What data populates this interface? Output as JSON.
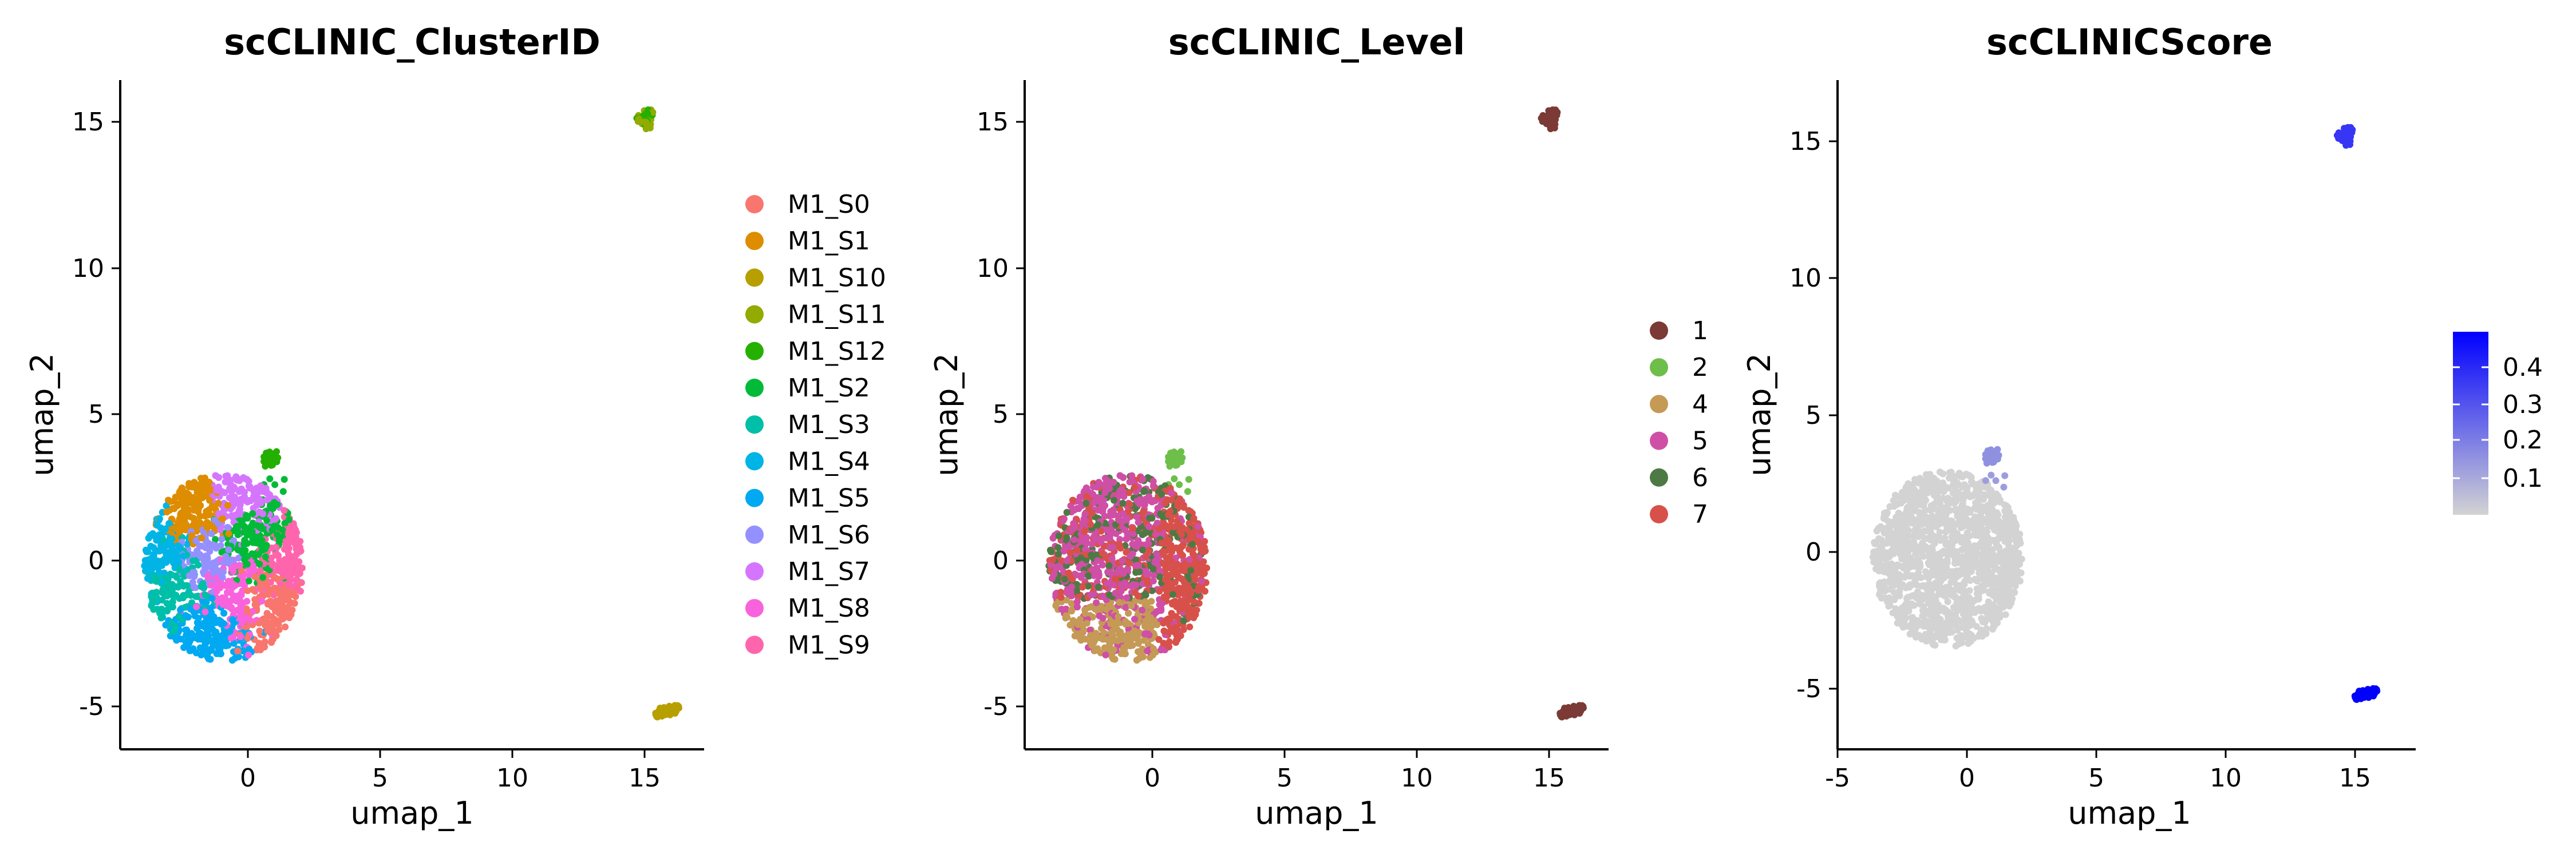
{
  "chart_data": [
    {
      "type": "scatter",
      "title": "scCLINIC_ClusterID",
      "xlabel": "umap_1",
      "ylabel": "umap_2",
      "xlim": [
        -4.8,
        17.2
      ],
      "ylim": [
        -6.5,
        16.3
      ],
      "xticks": [
        "0",
        "5",
        "10",
        "15"
      ],
      "yticks": [
        "-5",
        "0",
        "5",
        "10",
        "15"
      ],
      "legend": {
        "position": "right",
        "title": ""
      },
      "series": [
        {
          "name": "M1_S0",
          "color": "#F8766D"
        },
        {
          "name": "M1_S1",
          "color": "#DE8C00"
        },
        {
          "name": "M1_S10",
          "color": "#B79F00"
        },
        {
          "name": "M1_S11",
          "color": "#93AA00"
        },
        {
          "name": "M1_S12",
          "color": "#25B000"
        },
        {
          "name": "M1_S2",
          "color": "#00BA38"
        },
        {
          "name": "M1_S3",
          "color": "#00BFA8"
        },
        {
          "name": "M1_S4",
          "color": "#00B4E5"
        },
        {
          "name": "M1_S5",
          "color": "#00A9F2"
        },
        {
          "name": "M1_S6",
          "color": "#9590FF"
        },
        {
          "name": "M1_S7",
          "color": "#D575FE"
        },
        {
          "name": "M1_S8",
          "color": "#F962DD"
        },
        {
          "name": "M1_S9",
          "color": "#FF65AC"
        }
      ],
      "clusters": [
        {
          "label": "main",
          "center": [
            -0.9,
            -0.3
          ],
          "radius": [
            3.0,
            3.2
          ]
        },
        {
          "label": "small",
          "center": [
            0.8,
            3.4
          ],
          "radius": [
            0.3,
            0.2
          ]
        },
        {
          "label": "top-right",
          "center": [
            15.0,
            15.0
          ],
          "radius": [
            0.35,
            0.35
          ]
        },
        {
          "label": "bottom-right",
          "center": [
            15.8,
            -5.2
          ],
          "radius": [
            0.45,
            0.18
          ]
        }
      ]
    },
    {
      "type": "scatter",
      "title": "scCLINIC_Level",
      "xlabel": "umap_1",
      "ylabel": "umap_2",
      "xlim": [
        -4.8,
        17.2
      ],
      "ylim": [
        -6.5,
        16.3
      ],
      "xticks": [
        "0",
        "5",
        "10",
        "15"
      ],
      "yticks": [
        "-5",
        "0",
        "5",
        "10",
        "15"
      ],
      "legend": {
        "position": "right",
        "title": ""
      },
      "series": [
        {
          "name": "1",
          "color": "#7B3A35"
        },
        {
          "name": "2",
          "color": "#6EBE4A"
        },
        {
          "name": "4",
          "color": "#C49A56"
        },
        {
          "name": "5",
          "color": "#CF4FA6"
        },
        {
          "name": "6",
          "color": "#4D7A44"
        },
        {
          "name": "7",
          "color": "#D7514A"
        }
      ]
    },
    {
      "type": "scatter",
      "title": "scCLINICScore",
      "xlabel": "umap_1",
      "ylabel": "umap_2",
      "xlim": [
        -5.3,
        17.8
      ],
      "ylim": [
        -7.2,
        17.0
      ],
      "xticks": [
        "-5",
        "0",
        "5",
        "10",
        "15"
      ],
      "yticks": [
        "-5",
        "0",
        "5",
        "10",
        "15"
      ],
      "legend": {
        "position": "right",
        "title": ""
      },
      "colorbar": {
        "low_color": "#D3D3D3",
        "high_color": "#0000FF",
        "range": [
          0.0,
          0.47
        ],
        "ticks": [
          "0.1",
          "0.2",
          "0.3",
          "0.4"
        ]
      },
      "cluster_scores": {
        "main": 0.0,
        "small": 0.15,
        "top-right": 0.35,
        "bottom-right": 0.47
      }
    }
  ]
}
